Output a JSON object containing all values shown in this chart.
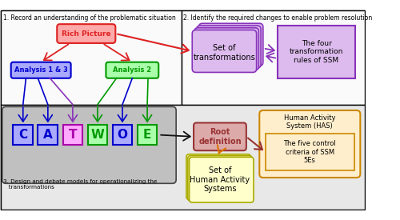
{
  "title1": "1. Record an understanding of the problematic situation",
  "title2": "2. Identify the required changes to enable problem resolution",
  "title3": "3. Design and debate models for operationalizing the\n   transformations",
  "rich_picture": "Rich Picture",
  "analysis1": "Analysis 1 & 3",
  "analysis2": "Analysis 2",
  "catwoe_letters": [
    "C",
    "A",
    "T",
    "W",
    "O",
    "E"
  ],
  "root_def": "Root\ndefinition",
  "set_transform": "Set of\ntransformations",
  "four_rules": "The four\ntransformation\nrules of SSM",
  "has_label": "Human Activity\nSystem (HAS)",
  "five_control": "The five control\ncriteria of SSM\n5Es",
  "set_has": "Set of\nHuman Activity\nSystems",
  "rich_picture_color": "#dd2222",
  "rich_picture_fill": "#ffaaaa",
  "analysis1_color": "#0000cc",
  "analysis1_fill": "#aaaaff",
  "analysis2_color": "#009900",
  "analysis2_fill": "#aaffaa",
  "catwoe_colors": [
    "#0000cc",
    "#0000cc",
    "#aa00aa",
    "#009900",
    "#0000cc",
    "#009900"
  ],
  "catwoe_fills": [
    "#aaaaff",
    "#aaaaff",
    "#ffaaff",
    "#aaffaa",
    "#aaaaff",
    "#aaffaa"
  ],
  "root_def_color": "#993333",
  "root_def_fill": "#ddaaaa",
  "set_transform_color": "#8833bb",
  "set_transform_fill": "#ddbbee",
  "four_rules_color": "#8833bb",
  "four_rules_fill": "#ddbbee",
  "has_color": "#cc8800",
  "has_fill": "#ffeecc",
  "five_control_fill": "#ffeecc",
  "set_has_color": "#aaaa00",
  "set_has_fill": "#ffffcc",
  "arrow_red": "#dd2222",
  "arrow_blue": "#0000cc",
  "arrow_green": "#009900",
  "arrow_purple": "#8833bb",
  "arrow_black": "#111111",
  "arrow_orange": "#dd7700",
  "arrow_dark_red": "#993333"
}
